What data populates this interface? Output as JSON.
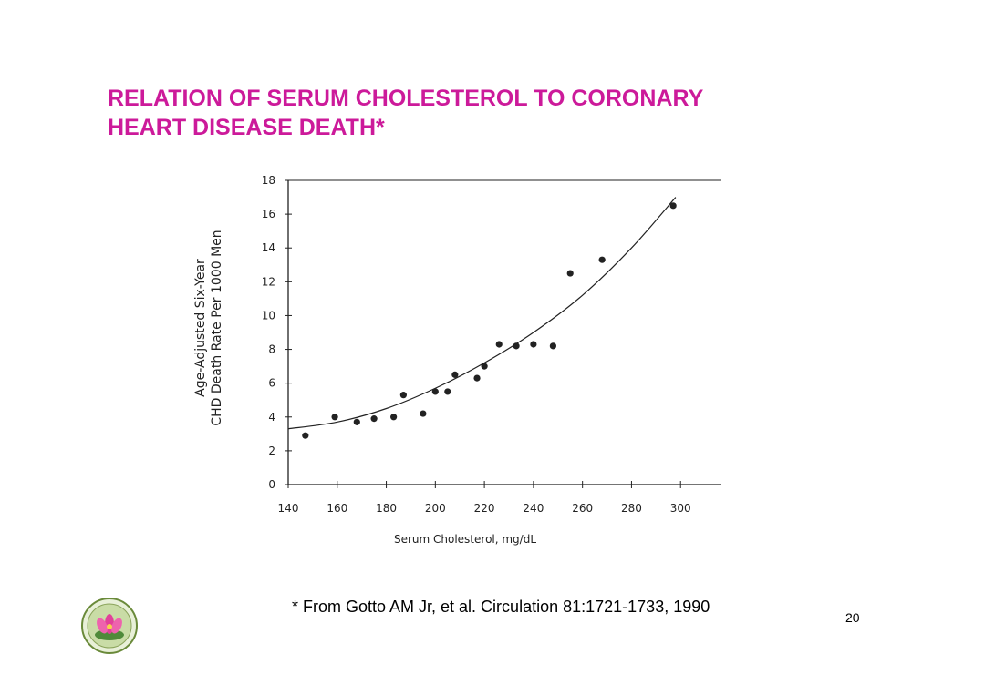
{
  "slide": {
    "title_line1": "RELATION OF SERUM CHOLESTEROL TO CORONARY",
    "title_line2": "HEART DISEASE DEATH*",
    "footnote": "* From Gotto AM Jr, et al. Circulation 81:1721-1733, 1990",
    "page_number": "20",
    "title_color": "#cc1a9a",
    "logo_icon": "lotus-emblem-icon"
  },
  "chart_data": {
    "type": "scatter",
    "title": "",
    "xlabel": "Serum Cholesterol, mg/dL",
    "ylabel_line1": "Age-Adjusted Six-Year",
    "ylabel_line2": "CHD Death Rate Per 1000 Men",
    "xlim": [
      140,
      320
    ],
    "ylim": [
      0,
      18
    ],
    "x_ticks": [
      140,
      160,
      180,
      200,
      220,
      240,
      260,
      280,
      300
    ],
    "y_ticks": [
      0,
      2,
      4,
      6,
      8,
      10,
      12,
      14,
      16,
      18
    ],
    "grid": false,
    "legend": "none",
    "points": [
      {
        "x": 147,
        "y": 2.9
      },
      {
        "x": 159,
        "y": 4.0
      },
      {
        "x": 168,
        "y": 3.7
      },
      {
        "x": 175,
        "y": 3.9
      },
      {
        "x": 183,
        "y": 4.0
      },
      {
        "x": 187,
        "y": 5.3
      },
      {
        "x": 195,
        "y": 4.2
      },
      {
        "x": 200,
        "y": 5.5
      },
      {
        "x": 205,
        "y": 5.5
      },
      {
        "x": 208,
        "y": 6.5
      },
      {
        "x": 217,
        "y": 6.3
      },
      {
        "x": 220,
        "y": 7.0
      },
      {
        "x": 226,
        "y": 8.3
      },
      {
        "x": 233,
        "y": 8.2
      },
      {
        "x": 240,
        "y": 8.3
      },
      {
        "x": 248,
        "y": 8.2
      },
      {
        "x": 255,
        "y": 12.5
      },
      {
        "x": 268,
        "y": 13.3
      },
      {
        "x": 297,
        "y": 16.5
      }
    ],
    "fit_curve": [
      {
        "x": 140,
        "y": 3.3
      },
      {
        "x": 160,
        "y": 3.7
      },
      {
        "x": 180,
        "y": 4.5
      },
      {
        "x": 200,
        "y": 5.7
      },
      {
        "x": 220,
        "y": 7.2
      },
      {
        "x": 240,
        "y": 9.0
      },
      {
        "x": 260,
        "y": 11.2
      },
      {
        "x": 280,
        "y": 14.0
      },
      {
        "x": 298,
        "y": 17.0
      }
    ]
  }
}
